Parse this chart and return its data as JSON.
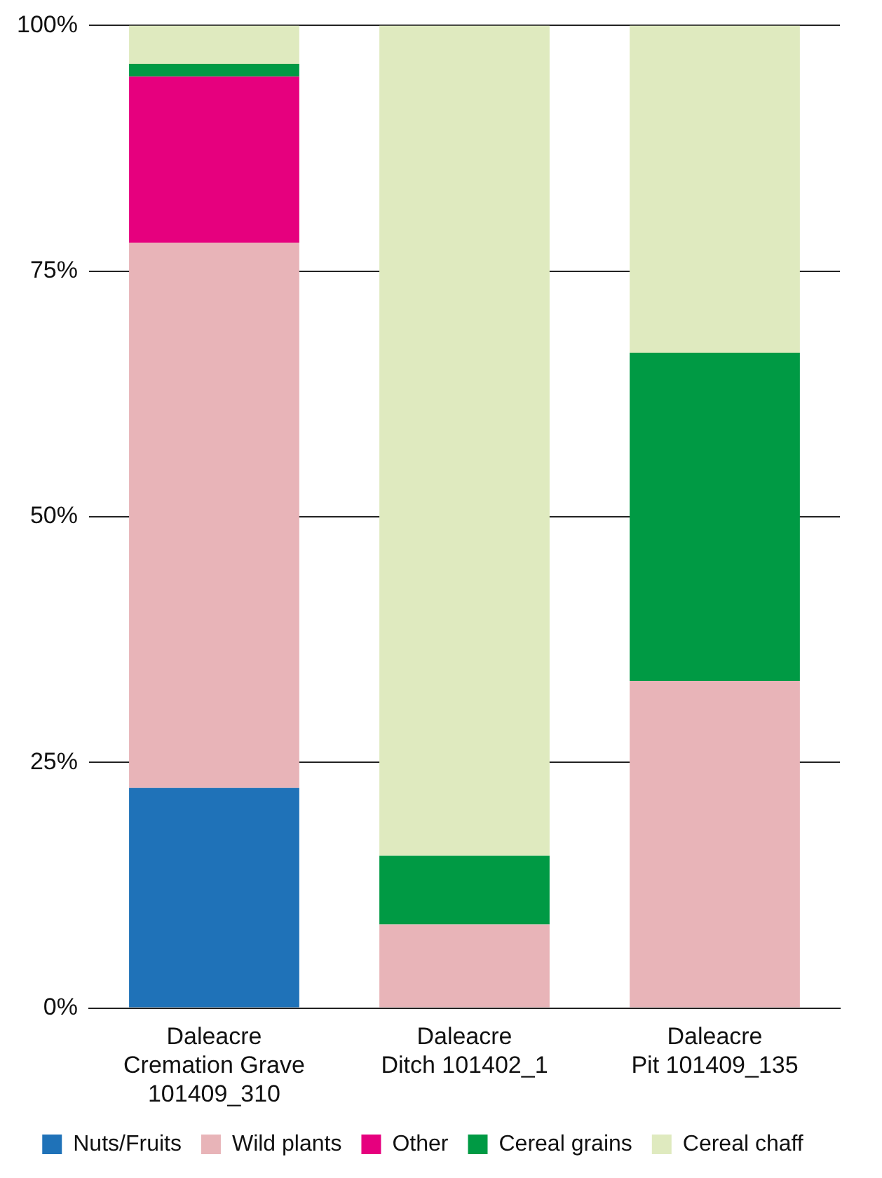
{
  "chart_data": {
    "type": "bar",
    "stacked": true,
    "categories": [
      "Daleacre\nCremation Grave\n101409_310",
      "Daleacre\nDitch 101402_1",
      "Daleacre\nPit 101409_135"
    ],
    "series": [
      {
        "name": "Nuts/Fruits",
        "color": "#1f72b8",
        "values": [
          22.4,
          0,
          0
        ]
      },
      {
        "name": "Wild plants",
        "color": "#e8b4b8",
        "values": [
          55.5,
          8.5,
          33.3
        ]
      },
      {
        "name": "Other",
        "color": "#e6007e",
        "values": [
          16.9,
          0,
          0
        ]
      },
      {
        "name": "Cereal grains",
        "color": "#009a44",
        "values": [
          1.3,
          7,
          33.4
        ]
      },
      {
        "name": "Cereal chaff",
        "color": "#dfeabf",
        "values": [
          3.9,
          84.5,
          33.3
        ]
      }
    ],
    "ylim": [
      0,
      100
    ],
    "yticks": [
      {
        "value": 0,
        "label": "0%"
      },
      {
        "value": 25,
        "label": "25%"
      },
      {
        "value": 50,
        "label": "50%"
      },
      {
        "value": 75,
        "label": "75%"
      },
      {
        "value": 100,
        "label": "100%"
      }
    ],
    "grid": "y",
    "legend": "bottom"
  }
}
